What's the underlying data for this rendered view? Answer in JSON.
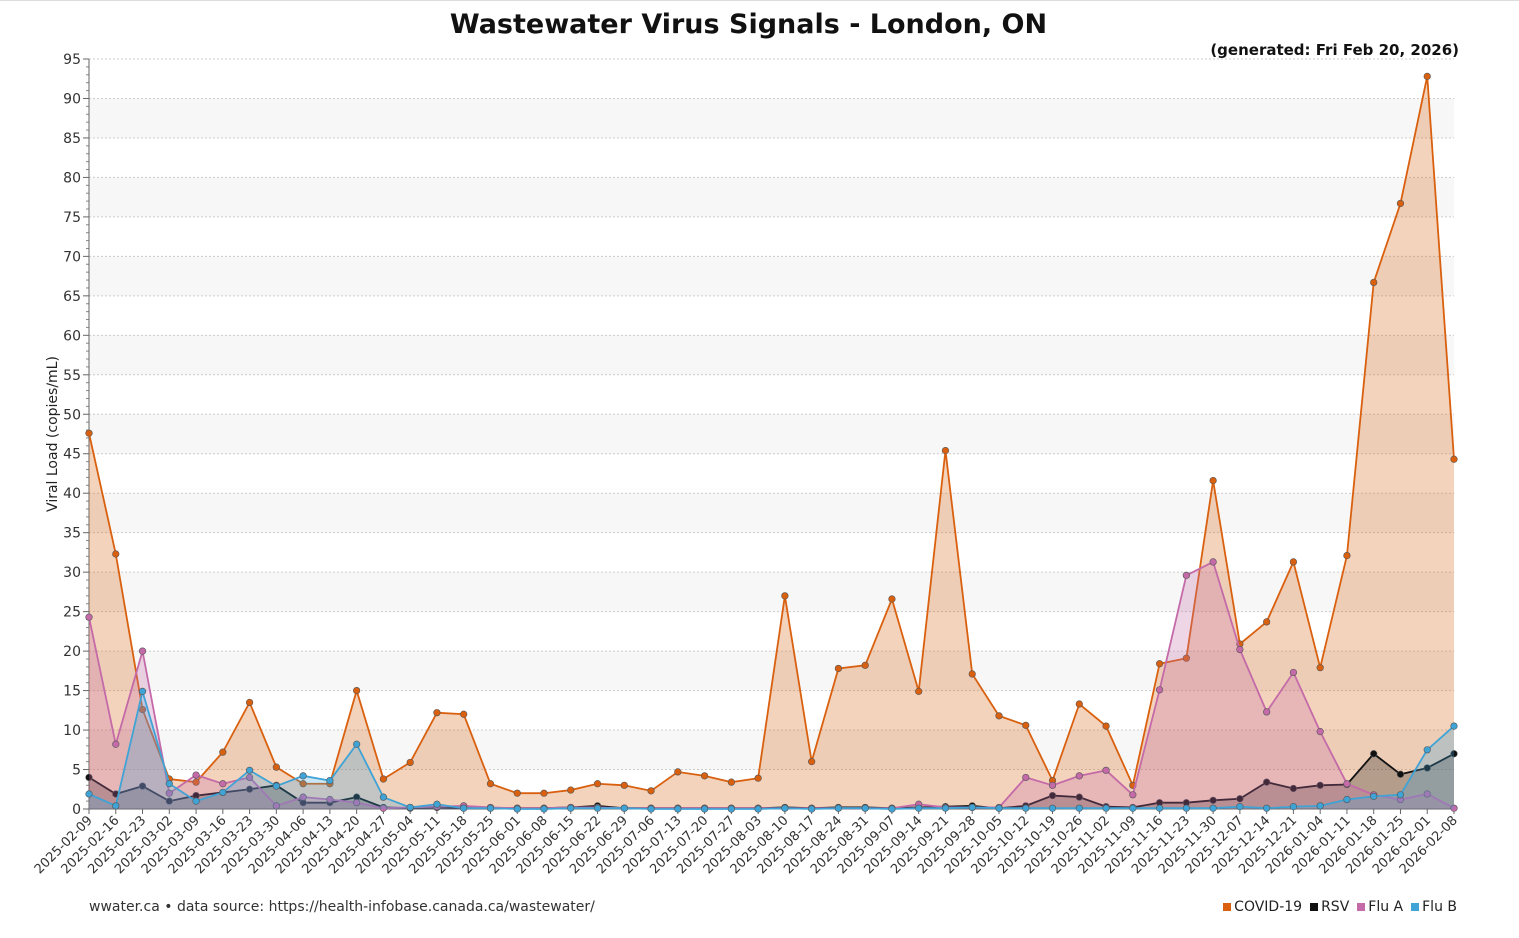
{
  "chart_data": {
    "type": "area",
    "title": "Wastewater Virus Signals - London, ON",
    "subtitle": "(generated: Fri Feb 20, 2026)",
    "xlabel": "",
    "ylabel": "Viral Load (copies/mL)",
    "ylim": [
      0,
      95
    ],
    "yticks": [
      0,
      5,
      10,
      15,
      20,
      25,
      30,
      35,
      40,
      45,
      50,
      55,
      60,
      65,
      70,
      75,
      80,
      85,
      90,
      95
    ],
    "grid": true,
    "legend_position": "bottom-right",
    "categories": [
      "2025-02-09",
      "2025-02-16",
      "2025-02-23",
      "2025-03-02",
      "2025-03-09",
      "2025-03-16",
      "2025-03-23",
      "2025-03-30",
      "2025-04-06",
      "2025-04-13",
      "2025-04-20",
      "2025-04-27",
      "2025-05-04",
      "2025-05-11",
      "2025-05-18",
      "2025-05-25",
      "2025-06-01",
      "2025-06-08",
      "2025-06-15",
      "2025-06-22",
      "2025-06-29",
      "2025-07-06",
      "2025-07-13",
      "2025-07-20",
      "2025-07-27",
      "2025-08-03",
      "2025-08-10",
      "2025-08-17",
      "2025-08-24",
      "2025-08-31",
      "2025-09-07",
      "2025-09-14",
      "2025-09-21",
      "2025-09-28",
      "2025-10-05",
      "2025-10-12",
      "2025-10-19",
      "2025-10-26",
      "2025-11-02",
      "2025-11-09",
      "2025-11-16",
      "2025-11-23",
      "2025-11-30",
      "2025-12-07",
      "2025-12-14",
      "2025-12-21",
      "2026-01-04",
      "2026-01-11",
      "2026-01-18",
      "2026-01-25",
      "2026-02-01",
      "2026-02-08"
    ],
    "series": [
      {
        "name": "COVID-19",
        "color": "#d9600f",
        "values": [
          47.6,
          32.3,
          12.6,
          3.8,
          3.4,
          7.2,
          13.5,
          5.3,
          3.2,
          3.2,
          15.0,
          3.8,
          5.9,
          12.2,
          12.0,
          3.2,
          2.0,
          2.0,
          2.4,
          3.2,
          3.0,
          2.3,
          4.7,
          4.2,
          3.4,
          3.9,
          27.0,
          6.0,
          17.8,
          18.2,
          26.6,
          14.9,
          45.4,
          17.1,
          11.8,
          10.6,
          3.6,
          13.3,
          10.5,
          3.0,
          18.4,
          19.1,
          41.6,
          20.9,
          23.7,
          31.3,
          17.9,
          32.1,
          66.7,
          76.7,
          92.8,
          44.3
        ]
      },
      {
        "name": "RSV",
        "color": "#111111",
        "values": [
          4.0,
          1.9,
          2.9,
          1.0,
          1.7,
          2.1,
          2.5,
          3.0,
          0.8,
          0.8,
          1.5,
          0.2,
          0.1,
          0.2,
          0.1,
          0.1,
          0.1,
          0.1,
          0.2,
          0.4,
          0.1,
          0.1,
          0.1,
          0.1,
          0.1,
          0.1,
          0.2,
          0.1,
          0.2,
          0.2,
          0.1,
          0.2,
          0.3,
          0.4,
          0.1,
          0.4,
          1.7,
          1.5,
          0.3,
          0.2,
          0.8,
          0.8,
          1.1,
          1.3,
          3.4,
          2.6,
          3.0,
          3.1,
          7.0,
          4.4,
          5.2,
          7.0
        ]
      },
      {
        "name": "Flu A",
        "color": "#c46aa8",
        "values": [
          24.3,
          8.2,
          20.0,
          2.0,
          4.3,
          3.2,
          4.0,
          0.4,
          1.5,
          1.2,
          0.8,
          0.1,
          0.2,
          0.3,
          0.4,
          0.2,
          0.1,
          0.1,
          0.2,
          0.2,
          0.1,
          0.1,
          0.1,
          0.1,
          0.1,
          0.1,
          0.1,
          0.1,
          0.1,
          0.1,
          0.1,
          0.6,
          0.2,
          0.2,
          0.2,
          4.0,
          3.0,
          4.2,
          4.9,
          1.8,
          15.1,
          29.6,
          31.3,
          20.2,
          12.3,
          17.3,
          9.8,
          3.2,
          1.8,
          1.2,
          1.9,
          0.1
        ]
      },
      {
        "name": "Flu B",
        "color": "#3fa3d6",
        "values": [
          1.9,
          0.4,
          14.9,
          3.2,
          1.0,
          2.1,
          4.9,
          2.9,
          4.2,
          3.6,
          8.2,
          1.5,
          0.2,
          0.6,
          0.1,
          0.1,
          0.0,
          0.0,
          0.1,
          0.1,
          0.1,
          0.0,
          0.0,
          0.0,
          0.0,
          0.0,
          0.1,
          0.0,
          0.1,
          0.1,
          0.0,
          0.1,
          0.1,
          0.2,
          0.1,
          0.1,
          0.1,
          0.1,
          0.1,
          0.1,
          0.1,
          0.1,
          0.1,
          0.3,
          0.1,
          0.3,
          0.4,
          1.2,
          1.6,
          1.8,
          7.5,
          10.5
        ]
      }
    ]
  },
  "footer": "wwater.ca • data source: https://health-infobase.canada.ca/wastewater/"
}
